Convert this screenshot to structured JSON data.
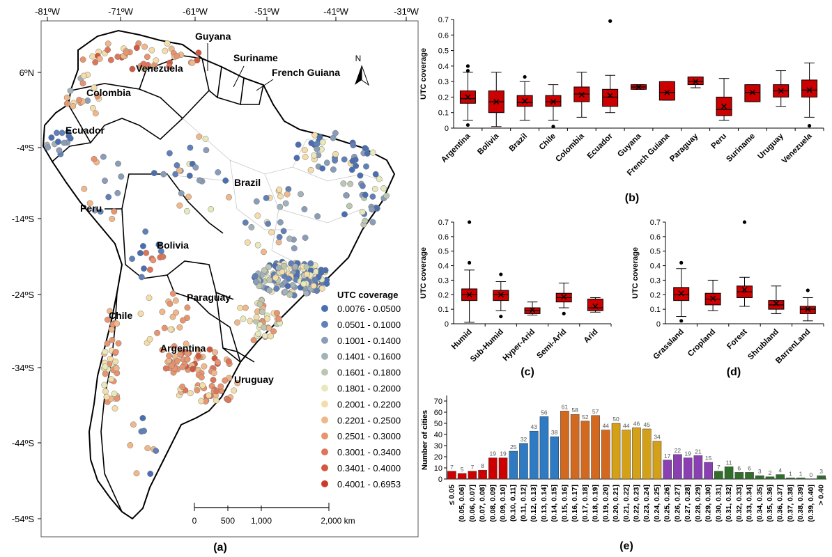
{
  "colors": {
    "legend": [
      "#4a6fb1",
      "#5f80b8",
      "#8a9db8",
      "#a3b1b8",
      "#bcc6b0",
      "#e8e9bb",
      "#f4dda8",
      "#f0b88a",
      "#e8956f",
      "#df7559",
      "#d45840",
      "#cc3b2a"
    ],
    "box_fill": "#cc0000",
    "hist": {
      "red": "#cc0000",
      "blue": "#2e7bc4",
      "orange": "#d2691e",
      "gold": "#d4a017",
      "purple": "#8a3fb2",
      "green": "#2f6f2a"
    }
  },
  "map": {
    "panel_label": "(a)",
    "lon_labels": [
      "-81ºW",
      "-71ºW",
      "-61ºW",
      "-51ºW",
      "-41ºW",
      "-31ºW"
    ],
    "lat_labels": [
      "6ºN",
      "-4ºS",
      "-14ºS",
      "-24ºS",
      "-34ºS",
      "-44ºS",
      "-54ºS"
    ],
    "countries": [
      "Guyana",
      "Venezuela",
      "Suriname",
      "French Guiana",
      "Colombia",
      "Ecuador",
      "Brazil",
      "Peru",
      "Bolivia",
      "Paraguay",
      "Chile",
      "Argentina",
      "Uruguay"
    ],
    "north_label": "N",
    "legend_title": "UTC coverage",
    "legend_items": [
      "0.0076 - 0.0500",
      "0.0501 - 0.1000",
      "0.1001 - 0.1400",
      "0.1401 - 0.1600",
      "0.1601 - 0.1800",
      "0.1801 - 0.2000",
      "0.2001 - 0.2200",
      "0.2201 - 0.2500",
      "0.2501 - 0.3000",
      "0.3001 - 0.3400",
      "0.3401 - 0.4000",
      "0.4001 - 0.6953"
    ],
    "scale_ticks": [
      "0",
      "500",
      "1,000",
      "2,000 km"
    ]
  },
  "chart_data": [
    {
      "type": "box",
      "panel_label": "(b)",
      "ylabel": "UTC coverage",
      "ylim": [
        0,
        0.7
      ],
      "yticks": [
        "0",
        "0.1",
        "0.2",
        "0.3",
        "0.4",
        "0.5",
        "0.6",
        "0.7"
      ],
      "categories": [
        "Argentina",
        "Bolivia",
        "Brazil",
        "Chile",
        "Colombia",
        "Ecuador",
        "Guyana",
        "French Guiana",
        "Paraguay",
        "Peru",
        "Suriname",
        "Uruguay",
        "Venezuela"
      ],
      "boxes": [
        {
          "min": 0.05,
          "q1": 0.16,
          "median": 0.19,
          "q3": 0.24,
          "max": 0.36,
          "mean": 0.2,
          "outliers": [
            0.4,
            0.37,
            0.02
          ]
        },
        {
          "min": 0.01,
          "q1": 0.1,
          "median": 0.17,
          "q3": 0.24,
          "max": 0.36,
          "mean": 0.17,
          "outliers": []
        },
        {
          "min": 0.05,
          "q1": 0.14,
          "median": 0.165,
          "q3": 0.21,
          "max": 0.3,
          "mean": 0.175,
          "outliers": [
            0.33
          ]
        },
        {
          "min": 0.05,
          "q1": 0.14,
          "median": 0.17,
          "q3": 0.21,
          "max": 0.28,
          "mean": 0.17,
          "outliers": [
            0.01
          ]
        },
        {
          "min": 0.07,
          "q1": 0.17,
          "median": 0.22,
          "q3": 0.265,
          "max": 0.36,
          "mean": 0.215,
          "outliers": []
        },
        {
          "min": 0.1,
          "q1": 0.14,
          "median": 0.2,
          "q3": 0.25,
          "max": 0.34,
          "mean": 0.21,
          "outliers": [
            0.69
          ]
        },
        {
          "min": 0.25,
          "q1": 0.25,
          "median": 0.265,
          "q3": 0.28,
          "max": 0.28,
          "mean": 0.265,
          "outliers": []
        },
        {
          "min": 0.18,
          "q1": 0.18,
          "median": 0.23,
          "q3": 0.3,
          "max": 0.3,
          "mean": 0.23,
          "outliers": []
        },
        {
          "min": 0.26,
          "q1": 0.28,
          "median": 0.3,
          "q3": 0.33,
          "max": 0.33,
          "mean": 0.3,
          "outliers": []
        },
        {
          "min": 0.05,
          "q1": 0.08,
          "median": 0.12,
          "q3": 0.2,
          "max": 0.32,
          "mean": 0.14,
          "outliers": []
        },
        {
          "min": 0.17,
          "q1": 0.17,
          "median": 0.23,
          "q3": 0.28,
          "max": 0.28,
          "mean": 0.23,
          "outliers": []
        },
        {
          "min": 0.14,
          "q1": 0.2,
          "median": 0.24,
          "q3": 0.28,
          "max": 0.37,
          "mean": 0.24,
          "outliers": []
        },
        {
          "min": 0.07,
          "q1": 0.2,
          "median": 0.245,
          "q3": 0.31,
          "max": 0.42,
          "mean": 0.245,
          "outliers": [
            0.015
          ]
        }
      ]
    },
    {
      "type": "box",
      "panel_label": "(c)",
      "ylabel": "UTC coverage",
      "ylim": [
        0,
        0.7
      ],
      "yticks": [
        "0",
        "0.1",
        "0.2",
        "0.3",
        "0.4",
        "0.5",
        "0.6",
        "0.7"
      ],
      "categories": [
        "Humid",
        "Sub-Humid",
        "Hyper-Arid",
        "Semi-Arid",
        "Arid"
      ],
      "boxes": [
        {
          "min": 0.01,
          "q1": 0.16,
          "median": 0.2,
          "q3": 0.24,
          "max": 0.37,
          "mean": 0.2,
          "outliers": [
            0.7,
            0.42
          ]
        },
        {
          "min": 0.09,
          "q1": 0.16,
          "median": 0.2,
          "q3": 0.23,
          "max": 0.29,
          "mean": 0.2,
          "outliers": [
            0.34,
            0.05
          ]
        },
        {
          "min": 0.06,
          "q1": 0.07,
          "median": 0.09,
          "q3": 0.11,
          "max": 0.15,
          "mean": 0.095,
          "outliers": []
        },
        {
          "min": 0.11,
          "q1": 0.15,
          "median": 0.18,
          "q3": 0.21,
          "max": 0.28,
          "mean": 0.185,
          "outliers": [
            0.07
          ]
        },
        {
          "min": 0.08,
          "q1": 0.09,
          "median": 0.11,
          "q3": 0.17,
          "max": 0.18,
          "mean": 0.12,
          "outliers": []
        }
      ]
    },
    {
      "type": "box",
      "panel_label": "(d)",
      "ylabel": "UTC coverage",
      "ylim": [
        0,
        0.7
      ],
      "yticks": [
        "0",
        "0.1",
        "0.2",
        "0.3",
        "0.4",
        "0.5",
        "0.6",
        "0.7"
      ],
      "categories": [
        "Grassland",
        "Cropland",
        "Forest",
        "Shrubland",
        "BarrenLand"
      ],
      "boxes": [
        {
          "min": 0.05,
          "q1": 0.16,
          "median": 0.2,
          "q3": 0.25,
          "max": 0.38,
          "mean": 0.21,
          "outliers": [
            0.42,
            0.02
          ]
        },
        {
          "min": 0.09,
          "q1": 0.13,
          "median": 0.17,
          "q3": 0.21,
          "max": 0.3,
          "mean": 0.175,
          "outliers": []
        },
        {
          "min": 0.12,
          "q1": 0.18,
          "median": 0.22,
          "q3": 0.26,
          "max": 0.32,
          "mean": 0.235,
          "outliers": [
            0.7
          ]
        },
        {
          "min": 0.07,
          "q1": 0.1,
          "median": 0.13,
          "q3": 0.16,
          "max": 0.26,
          "mean": 0.14,
          "outliers": []
        },
        {
          "min": 0.02,
          "q1": 0.07,
          "median": 0.1,
          "q3": 0.12,
          "max": 0.18,
          "mean": 0.1,
          "outliers": [
            0.23
          ]
        }
      ]
    },
    {
      "type": "bar",
      "panel_label": "(e)",
      "ylabel": "Number of cities",
      "ylim": [
        0,
        70
      ],
      "yticks": [
        "0",
        "10",
        "20",
        "30",
        "40",
        "50",
        "60",
        "70"
      ],
      "categories": [
        "≤ 0.05",
        "(0.05, 0.06]",
        "(0.06, 0.07]",
        "(0.07, 0.08]",
        "(0.08, 0.09]",
        "(0.09, 0.10]",
        "(0.10, 0.11]",
        "(0.11, 0.12]",
        "(0.12, 0.13]",
        "(0.13, 0.14]",
        "(0.14, 0.15]",
        "(0.15, 0.16]",
        "(0.16, 0.17]",
        "(0.17, 0.18]",
        "(0.18, 0.19]",
        "(0.19, 0.20]",
        "(0.20, 0.21]",
        "(0.21, 0.22]",
        "(0.22, 0.23]",
        "(0.23, 0.24]",
        "(0.24, 0.25]",
        "(0.25, 0.26]",
        "(0.26, 0.27]",
        "(0.27, 0.28]",
        "(0.28, 0.29]",
        "(0.29, 0.30]",
        "(0.30, 0.31]",
        "(0.31, 0.32]",
        "(0.32, 0.33]",
        "(0.33, 0.34]",
        "(0.34, 0.35]",
        "(0.35, 0.36]",
        "(0.36, 0.37]",
        "(0.37, 0.38]",
        "(0.38, 0.39]",
        "(0.39, 0.40]",
        "> 0.40"
      ],
      "values": [
        7,
        5,
        7,
        8,
        19,
        19,
        25,
        32,
        43,
        56,
        38,
        61,
        58,
        52,
        57,
        44,
        50,
        44,
        46,
        45,
        34,
        17,
        22,
        19,
        21,
        15,
        7,
        11,
        6,
        6,
        3,
        2,
        4,
        1,
        1,
        0,
        3
      ],
      "color_groups": [
        "red",
        "red",
        "red",
        "red",
        "red",
        "red",
        "blue",
        "blue",
        "blue",
        "blue",
        "blue",
        "orange",
        "orange",
        "orange",
        "orange",
        "orange",
        "gold",
        "gold",
        "gold",
        "gold",
        "gold",
        "purple",
        "purple",
        "purple",
        "purple",
        "purple",
        "green",
        "green",
        "green",
        "green",
        "green",
        "green",
        "green",
        "green",
        "green",
        "green",
        "green"
      ]
    }
  ]
}
